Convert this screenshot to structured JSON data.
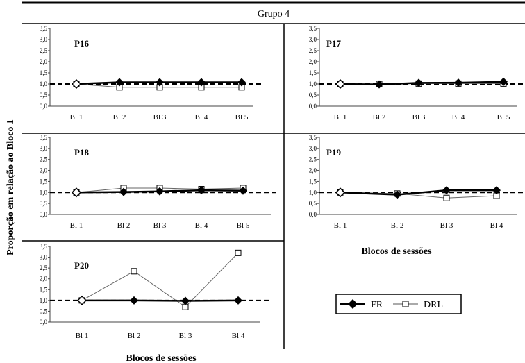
{
  "group_label": "Grupo 4",
  "ylabel": "Proporção em relação ao Bloco 1",
  "xlabel": "Blocos de sessões",
  "legend": {
    "fr": "FR",
    "drl": "DRL"
  },
  "chart_data": [
    {
      "type": "line",
      "title": "P16",
      "categories": [
        "Bl 1",
        "Bl 2",
        "Bl 3",
        "Bl 4",
        "Bl 5"
      ],
      "yticks": [
        "0,0",
        "0,5",
        "1,0",
        "1,5",
        "2,0",
        "2,5",
        "3,0",
        "3,5"
      ],
      "ylim": [
        0,
        3.5
      ],
      "reference_line": 1.0,
      "series": [
        {
          "name": "FR",
          "values": [
            1.0,
            1.08,
            1.08,
            1.08,
            1.08
          ]
        },
        {
          "name": "DRL",
          "values": [
            1.0,
            0.85,
            0.85,
            0.85,
            0.85
          ]
        }
      ]
    },
    {
      "type": "line",
      "title": "P17",
      "categories": [
        "Bl 1",
        "Bl 2",
        "Bl 3",
        "Bl 4",
        "Bl 5"
      ],
      "yticks": [
        "0,0",
        "0,5",
        "1,0",
        "1,5",
        "2,0",
        "2,5",
        "3,0",
        "3,5"
      ],
      "ylim": [
        0,
        3.5
      ],
      "reference_line": 1.0,
      "series": [
        {
          "name": "FR",
          "values": [
            1.0,
            0.98,
            1.05,
            1.06,
            1.1
          ]
        },
        {
          "name": "DRL",
          "values": [
            1.0,
            1.0,
            1.02,
            1.02,
            1.02
          ]
        }
      ]
    },
    {
      "type": "line",
      "title": "P18",
      "categories": [
        "Bl 1",
        "Bl 2",
        "Bl 3",
        "Bl 4",
        "Bl 5"
      ],
      "yticks": [
        "0,0",
        "0,5",
        "1,0",
        "1,5",
        "2,0",
        "2,5",
        "3,0",
        "3,5"
      ],
      "ylim": [
        0,
        3.5
      ],
      "reference_line": 1.0,
      "series": [
        {
          "name": "FR",
          "values": [
            1.0,
            1.02,
            1.05,
            1.1,
            1.08
          ]
        },
        {
          "name": "DRL",
          "values": [
            1.0,
            1.2,
            1.2,
            1.15,
            1.2
          ]
        }
      ]
    },
    {
      "type": "line",
      "title": "P19",
      "categories": [
        "Bl 1",
        "Bl 2",
        "Bl 3",
        "Bl 4"
      ],
      "yticks": [
        "0,0",
        "0,5",
        "1,0",
        "1,5",
        "2,0",
        "2,5",
        "3,0",
        "3,5"
      ],
      "ylim": [
        0,
        3.5
      ],
      "reference_line": 1.0,
      "series": [
        {
          "name": "FR",
          "values": [
            1.0,
            0.9,
            1.1,
            1.1
          ]
        },
        {
          "name": "DRL",
          "values": [
            1.0,
            0.95,
            0.75,
            0.85
          ]
        }
      ]
    },
    {
      "type": "line",
      "title": "P20",
      "categories": [
        "Bl 1",
        "Bl 2",
        "Bl 3",
        "Bl 4"
      ],
      "yticks": [
        "0,0",
        "0,5",
        "1,0",
        "1,5",
        "2,0",
        "2,5",
        "3,0",
        "3,5"
      ],
      "ylim": [
        0,
        3.5
      ],
      "reference_line": 1.0,
      "series": [
        {
          "name": "FR",
          "values": [
            1.0,
            1.0,
            0.98,
            1.0
          ]
        },
        {
          "name": "DRL",
          "values": [
            1.0,
            2.35,
            0.7,
            3.2
          ]
        }
      ]
    }
  ]
}
